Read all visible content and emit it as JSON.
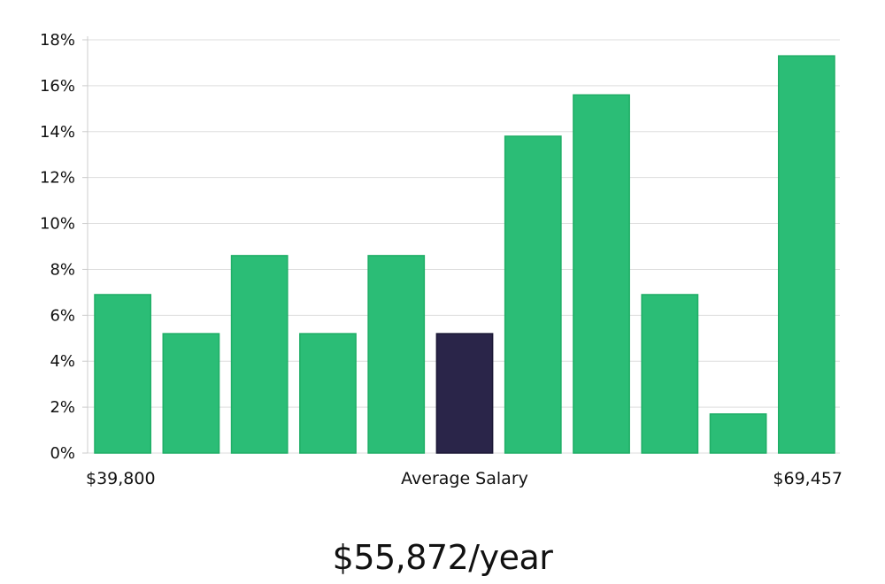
{
  "chart_data": {
    "type": "bar",
    "values": [
      6.9,
      5.2,
      8.6,
      5.2,
      8.6,
      5.2,
      13.8,
      15.6,
      6.9,
      1.7,
      17.3
    ],
    "highlight_index": 5,
    "ylim": [
      0,
      18
    ],
    "y_ticks": [
      "0%",
      "2%",
      "4%",
      "6%",
      "8%",
      "10%",
      "12%",
      "14%",
      "16%",
      "18%"
    ],
    "y_tick_values": [
      0,
      2,
      4,
      6,
      8,
      10,
      12,
      14,
      16,
      18
    ],
    "x_min_label": "$39,800",
    "xlabel": "Average Salary",
    "x_max_label": "$69,457",
    "grid": true,
    "colors": {
      "bar": "#2bbd76",
      "bar_edge": "#1fae66",
      "highlight": "#2a2549",
      "grid": "#dddddd",
      "axis": "#cccccc"
    }
  },
  "salary": {
    "display": "$55,872/year"
  }
}
